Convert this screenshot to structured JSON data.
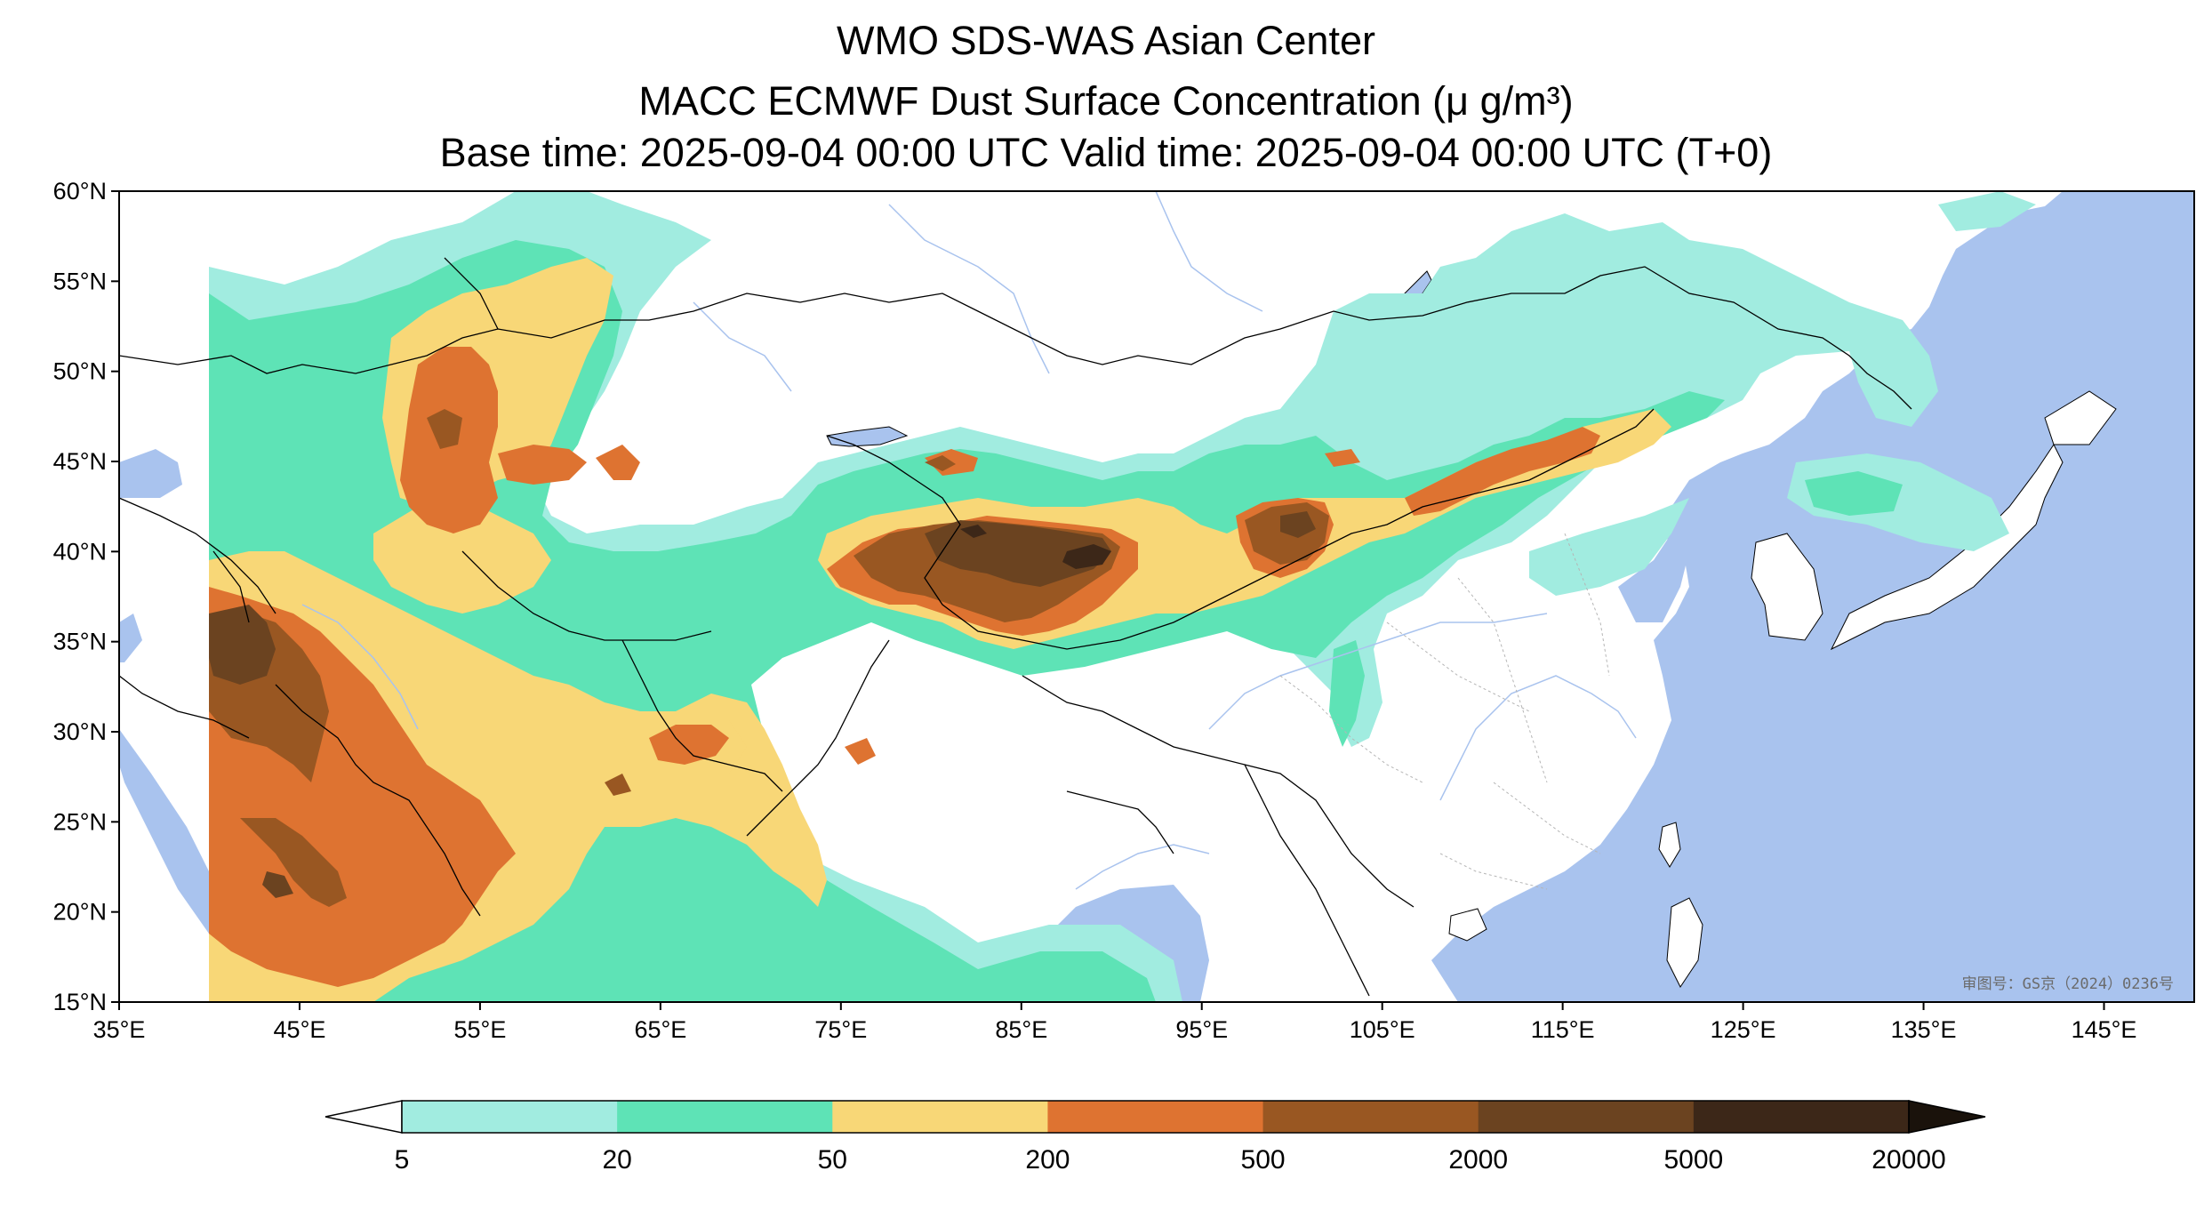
{
  "titles": {
    "line1": "WMO SDS-WAS Asian Center",
    "line2": "MACC ECMWF Dust Surface Concentration (μ g/m³)",
    "line3": "Base time: 2025-09-04 00:00 UTC Valid time: 2025-09-04 00:00 UTC (T+0)"
  },
  "map": {
    "lon_range": [
      35,
      150
    ],
    "lat_range": [
      15,
      60
    ],
    "lat_ticks": [
      "60°N",
      "55°N",
      "50°N",
      "45°N",
      "40°N",
      "35°N",
      "30°N",
      "25°N",
      "20°N",
      "15°N"
    ],
    "lon_ticks": [
      "35°E",
      "45°E",
      "55°E",
      "65°E",
      "75°E",
      "85°E",
      "95°E",
      "105°E",
      "115°E",
      "125°E",
      "135°E",
      "145°E"
    ],
    "watermark": "审图号：GS京（2024）0236号",
    "ocean_color": "#a9c3ee",
    "land_color": "#ffffff"
  },
  "legend": {
    "levels": [
      "5",
      "20",
      "50",
      "200",
      "500",
      "2000",
      "5000",
      "20000"
    ],
    "colors": [
      "#a1ece0",
      "#5ee3b6",
      "#f8d777",
      "#de7331",
      "#995722",
      "#6b4320",
      "#3c2718"
    ],
    "extend": "both"
  }
}
